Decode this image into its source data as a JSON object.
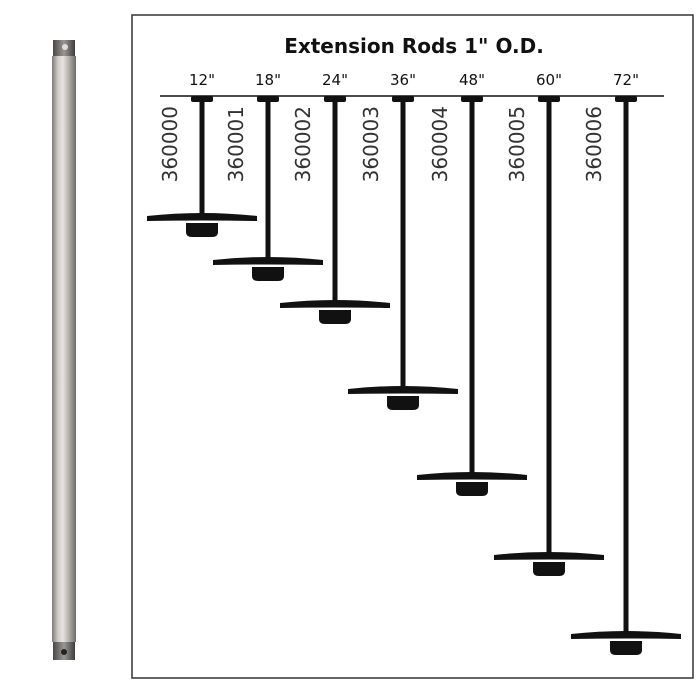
{
  "title": "Extension Rods 1\" O.D.",
  "rods": [
    {
      "length": "12\"",
      "sku": "360000"
    },
    {
      "length": "18\"",
      "sku": "360001"
    },
    {
      "length": "24\"",
      "sku": "360002"
    },
    {
      "length": "36\"",
      "sku": "360003"
    },
    {
      "length": "48\"",
      "sku": "360004"
    },
    {
      "length": "60\"",
      "sku": "360005"
    },
    {
      "length": "72\"",
      "sku": "360006"
    }
  ],
  "colors": {
    "ink": "#111111",
    "rod_finish": "#b9b5b0"
  }
}
